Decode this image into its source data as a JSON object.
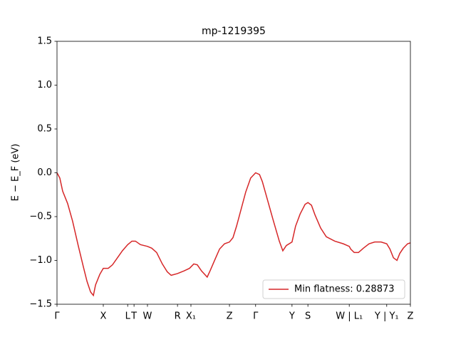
{
  "chart_data": {
    "type": "line",
    "title": "mp-1219395",
    "ylabel": "E − E_F (eV)",
    "xlim": [
      0,
      1
    ],
    "ylim": [
      -1.5,
      1.5
    ],
    "xticks": [
      {
        "value": 0,
        "label": "Γ"
      },
      {
        "value": 0.131,
        "label": "X"
      },
      {
        "value": 0.2,
        "label": "L"
      },
      {
        "value": 0.218,
        "label": "T"
      },
      {
        "value": 0.256,
        "label": "W"
      },
      {
        "value": 0.341,
        "label": "R"
      },
      {
        "value": 0.379,
        "label": "X₁"
      },
      {
        "value": 0.488,
        "label": "Z"
      },
      {
        "value": 0.562,
        "label": "Γ"
      },
      {
        "value": 0.665,
        "label": "Y"
      },
      {
        "value": 0.71,
        "label": "S"
      },
      {
        "value": 0.827,
        "label": "W | L₁"
      },
      {
        "value": 0.933,
        "label": "Y | Y₁"
      },
      {
        "value": 1,
        "label": "Z"
      }
    ],
    "yticks": [
      {
        "value": -1.5,
        "label": "−1.5"
      },
      {
        "value": -1,
        "label": "−1.0"
      },
      {
        "value": -0.5,
        "label": "−0.5"
      },
      {
        "value": 0,
        "label": "0.0"
      },
      0.5,
      {
        "value": 1,
        "label": "1.0"
      },
      1.5
    ],
    "legend": "lower right",
    "x": [
      0,
      0.008,
      0.016,
      0.03,
      0.044,
      0.06,
      0.075,
      0.085,
      0.095,
      0.103,
      0.109,
      0.121,
      0.131,
      0.145,
      0.157,
      0.171,
      0.185,
      0.2,
      0.212,
      0.222,
      0.236,
      0.256,
      0.268,
      0.282,
      0.298,
      0.312,
      0.323,
      0.341,
      0.359,
      0.375,
      0.387,
      0.397,
      0.409,
      0.425,
      0.433,
      0.448,
      0.46,
      0.474,
      0.488,
      0.498,
      0.508,
      0.52,
      0.534,
      0.548,
      0.562,
      0.573,
      0.581,
      0.595,
      0.611,
      0.629,
      0.639,
      0.649,
      0.665,
      0.675,
      0.688,
      0.702,
      0.71,
      0.72,
      0.73,
      0.746,
      0.762,
      0.786,
      0.81,
      0.827,
      0.831,
      0.841,
      0.853,
      0.867,
      0.883,
      0.899,
      0.917,
      0.933,
      0.942,
      0.952,
      0.962,
      0.97,
      0.98,
      0.992,
      1
    ],
    "series": [
      {
        "name": "Min flatness: 0.28873",
        "color": "#d62728",
        "values": [
          0,
          -0.06,
          -0.21,
          -0.35,
          -0.55,
          -0.83,
          -1.08,
          -1.24,
          -1.36,
          -1.4,
          -1.28,
          -1.16,
          -1.09,
          -1.09,
          -1.05,
          -0.97,
          -0.89,
          -0.82,
          -0.78,
          -0.78,
          -0.82,
          -0.84,
          -0.86,
          -0.91,
          -1.04,
          -1.13,
          -1.17,
          -1.15,
          -1.12,
          -1.09,
          -1.04,
          -1.05,
          -1.12,
          -1.19,
          -1.12,
          -0.98,
          -0.87,
          -0.81,
          -0.79,
          -0.74,
          -0.61,
          -0.43,
          -0.22,
          -0.06,
          0,
          -0.02,
          -0.1,
          -0.3,
          -0.53,
          -0.78,
          -0.89,
          -0.83,
          -0.79,
          -0.61,
          -0.47,
          -0.36,
          -0.34,
          -0.37,
          -0.48,
          -0.63,
          -0.73,
          -0.78,
          -0.81,
          -0.84,
          -0.87,
          -0.91,
          -0.91,
          -0.86,
          -0.81,
          -0.79,
          -0.79,
          -0.81,
          -0.87,
          -0.97,
          -1,
          -0.92,
          -0.86,
          -0.81,
          -0.8
        ]
      }
    ]
  }
}
